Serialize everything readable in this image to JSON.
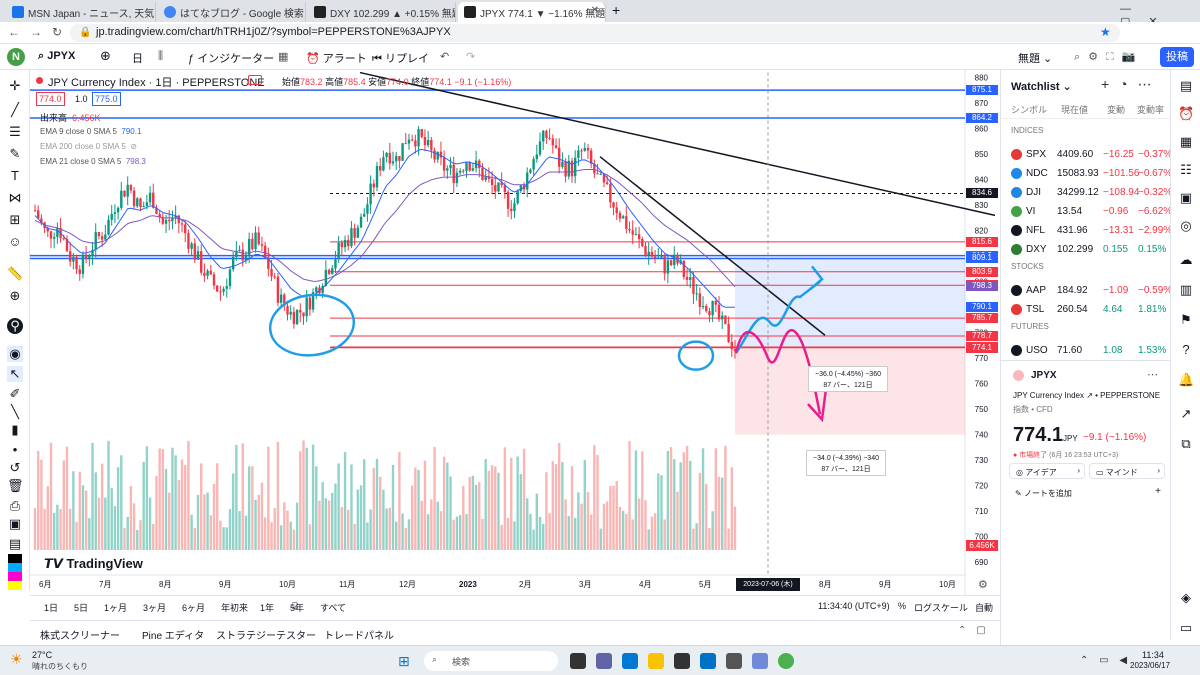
{
  "browser": {
    "tabs": [
      {
        "label": "MSN Japan - ニュース, 天気, メール (Hotm...",
        "color": "#1a73e8"
      },
      {
        "label": "はてなブログ - Google 検索",
        "color": "#4285f4"
      },
      {
        "label": "DXY 102.299 ▲ +0.15% 無題",
        "color": "#131722"
      },
      {
        "label": "JPYX 774.1 ▼ −1.16% 無題",
        "color": "#131722"
      }
    ],
    "url": "jp.tradingview.com/chart/hTRH1j0Z/?symbol=PEPPERSTONE%3AJPYX"
  },
  "toolbar": {
    "symbol": "JPYX",
    "interval": "日",
    "indicators": "インジケーター",
    "alert": "アラート",
    "replay": "リプレイ",
    "layout_name": "無題",
    "publish": "投稿"
  },
  "legend": {
    "title": "JPY Currency Index · 1日 · PEPPERSTONE",
    "ohlc_labels": {
      "open": "始値",
      "high": "高値",
      "low": "安値",
      "close": "終値"
    },
    "ohlc_values": {
      "open": "783.2",
      "high": "785.4",
      "low": "774.0",
      "close": "774.1",
      "change": "−9.1 (−1.16%)"
    },
    "bid": "774.0",
    "spread": "1.0",
    "ask": "775.0",
    "volume_label": "出来高",
    "volume_value": "6.456K",
    "ema9": "EMA 9 close 0 SMA 5",
    "ema9_value": "790.1",
    "ema200": "EMA 200 close 0 SMA 5",
    "ema21": "EMA 21 close 0 SMA 5",
    "ema21_value": "798.3",
    "watermark": "TradingView"
  },
  "chart_data": {
    "type": "candlestick",
    "title": "JPY Currency Index · 1日 · PEPPERSTONE",
    "ylim": [
      685,
      883
    ],
    "y_ticks": [
      880,
      870,
      860,
      850,
      840,
      830,
      820,
      810,
      800,
      790,
      780,
      770,
      760,
      750,
      740,
      730,
      720,
      710,
      700,
      690
    ],
    "x_ticks": [
      "6月",
      "7月",
      "8月",
      "9月",
      "10月",
      "11月",
      "12月",
      "2023",
      "2月",
      "3月",
      "4月",
      "5月",
      "6月",
      "8月",
      "9月",
      "10月"
    ],
    "cursor_date": "2023-07-06 (木)",
    "close_path": [
      828,
      818,
      822,
      810,
      806,
      815,
      820,
      832,
      838,
      828,
      834,
      822,
      826,
      818,
      808,
      800,
      796,
      808,
      812,
      816,
      806,
      793,
      787,
      789,
      796,
      805,
      812,
      818,
      824,
      838,
      852,
      848,
      858,
      856,
      850,
      845,
      842,
      848,
      844,
      838,
      834,
      830,
      840,
      852,
      858,
      846,
      844,
      852,
      842,
      835,
      828,
      820,
      814,
      810,
      806,
      808,
      800,
      794,
      790,
      782,
      774
    ],
    "ema_fast": [
      826,
      821,
      820,
      815,
      811,
      812,
      815,
      822,
      829,
      828,
      830,
      827,
      826,
      823,
      817,
      810,
      805,
      806,
      808,
      811,
      809,
      803,
      797,
      794,
      795,
      799,
      804,
      810,
      816,
      826,
      837,
      842,
      849,
      852,
      851,
      849,
      846,
      847,
      846,
      843,
      839,
      835,
      837,
      843,
      849,
      848,
      846,
      848,
      846,
      841,
      835,
      828,
      822,
      816,
      811,
      809,
      805,
      800,
      795,
      790,
      790
    ],
    "ema_slow": [
      824,
      822,
      821,
      819,
      816,
      815,
      816,
      819,
      823,
      824,
      826,
      825,
      825,
      824,
      821,
      817,
      813,
      812,
      811,
      812,
      811,
      808,
      804,
      801,
      800,
      801,
      803,
      806,
      810,
      816,
      823,
      828,
      834,
      838,
      840,
      841,
      841,
      842,
      842,
      841,
      840,
      838,
      838,
      840,
      843,
      843,
      843,
      844,
      844,
      842,
      839,
      835,
      831,
      826,
      822,
      819,
      816,
      812,
      808,
      803,
      798
    ],
    "price_tags": [
      {
        "label": "875.1",
        "value": 875.1,
        "color": "#2962ff"
      },
      {
        "label": "864.2",
        "value": 864.2,
        "color": "#2962ff"
      },
      {
        "label": "834.6",
        "value": 834.6,
        "color": "#131722"
      },
      {
        "label": "815.6",
        "value": 815.6,
        "color": "#f23645"
      },
      {
        "label": "810.2",
        "value": 810.2,
        "color": "#2962ff"
      },
      {
        "label": "809.1",
        "value": 809.1,
        "color": "#2962ff"
      },
      {
        "label": "803.9",
        "value": 803.9,
        "color": "#f23645"
      },
      {
        "label": "798.6",
        "value": 798.6,
        "color": "#f23645"
      },
      {
        "label": "798.3",
        "value": 798.3,
        "color": "#7e57c2"
      },
      {
        "label": "790.1",
        "value": 790.1,
        "color": "#2962ff"
      },
      {
        "label": "785.7",
        "value": 785.7,
        "color": "#f23645"
      },
      {
        "label": "778.7",
        "value": 778.7,
        "color": "#f23645"
      },
      {
        "label": "774.4",
        "value": 774.4,
        "color": "#f23645"
      },
      {
        "label": "774.1",
        "value": 774.1,
        "color": "#f23645"
      }
    ],
    "volume_tag": "6.456K",
    "measure_up": {
      "text1": "−36.0 (−4.45%) −360",
      "text2": "87 バー、121日"
    },
    "measure_down": {
      "text1": "−34.0 (−4.39%) −340",
      "text2": "87 バー、121日"
    }
  },
  "bottom": {
    "ranges": [
      "1日",
      "5日",
      "1ヶ月",
      "3ヶ月",
      "6ヶ月",
      "年初来",
      "1年",
      "5年",
      "すべて"
    ],
    "clock": "11:34:40 (UTC+9)",
    "percent": "%",
    "log": "ログスケール",
    "auto": "自動",
    "panels": [
      "株式スクリーナー",
      "Pine エディタ",
      "ストラテジーテスター",
      "トレードパネル"
    ]
  },
  "watchlist": {
    "title": "Watchlist",
    "cols": [
      "シンボル",
      "現在値",
      "変動",
      "変動率"
    ],
    "sections": [
      {
        "name": "INDICES",
        "rows": [
          {
            "sym": "SPX",
            "price": "4409.60",
            "chg": "−16.25",
            "pct": "−0.37%",
            "neg": true,
            "color": "#e53935"
          },
          {
            "sym": "NDC",
            "price": "15083.93",
            "chg": "−101.56",
            "pct": "−0.67%",
            "neg": true,
            "color": "#1e88e5"
          },
          {
            "sym": "DJI",
            "price": "34299.12",
            "chg": "−108.94",
            "pct": "−0.32%",
            "neg": true,
            "color": "#1e88e5"
          },
          {
            "sym": "VI",
            "price": "13.54",
            "chg": "−0.96",
            "pct": "−6.62%",
            "neg": true,
            "color": "#43a047"
          },
          {
            "sym": "NFL",
            "price": "431.96",
            "chg": "−13.31",
            "pct": "−2.99%",
            "neg": true,
            "color": "#131722"
          },
          {
            "sym": "DXY",
            "price": "102.299",
            "chg": "0.155",
            "pct": "0.15%",
            "neg": false,
            "color": "#2e7d32"
          }
        ]
      },
      {
        "name": "STOCKS",
        "rows": [
          {
            "sym": "AAP",
            "price": "184.92",
            "chg": "−1.09",
            "pct": "−0.59%",
            "neg": true,
            "color": "#131722"
          },
          {
            "sym": "TSL",
            "price": "260.54",
            "chg": "4.64",
            "pct": "1.81%",
            "neg": false,
            "color": "#e53935"
          }
        ]
      },
      {
        "name": "FUTURES",
        "rows": [
          {
            "sym": "USO",
            "price": "71.60",
            "chg": "1.08",
            "pct": "1.53%",
            "neg": false,
            "color": "#131722"
          }
        ]
      }
    ],
    "detail": {
      "symbol": "JPYX",
      "name": "JPY Currency Index",
      "exchange": "PEPPERSTONE",
      "category": "指数 • CFD",
      "price": "774.1",
      "currency": "JPY",
      "change": "−9.1 (−1.16%)",
      "status": "● 市場終了",
      "status_time": "(6月 16 23:53 UTC+3)",
      "ideas": "アイデア",
      "mind": "マインド",
      "note": "ノートを追加"
    }
  },
  "taskbar": {
    "temp": "27°C",
    "weather": "晴れのちくもり",
    "search": "検索",
    "time": "11:34",
    "date": "2023/06/17"
  }
}
